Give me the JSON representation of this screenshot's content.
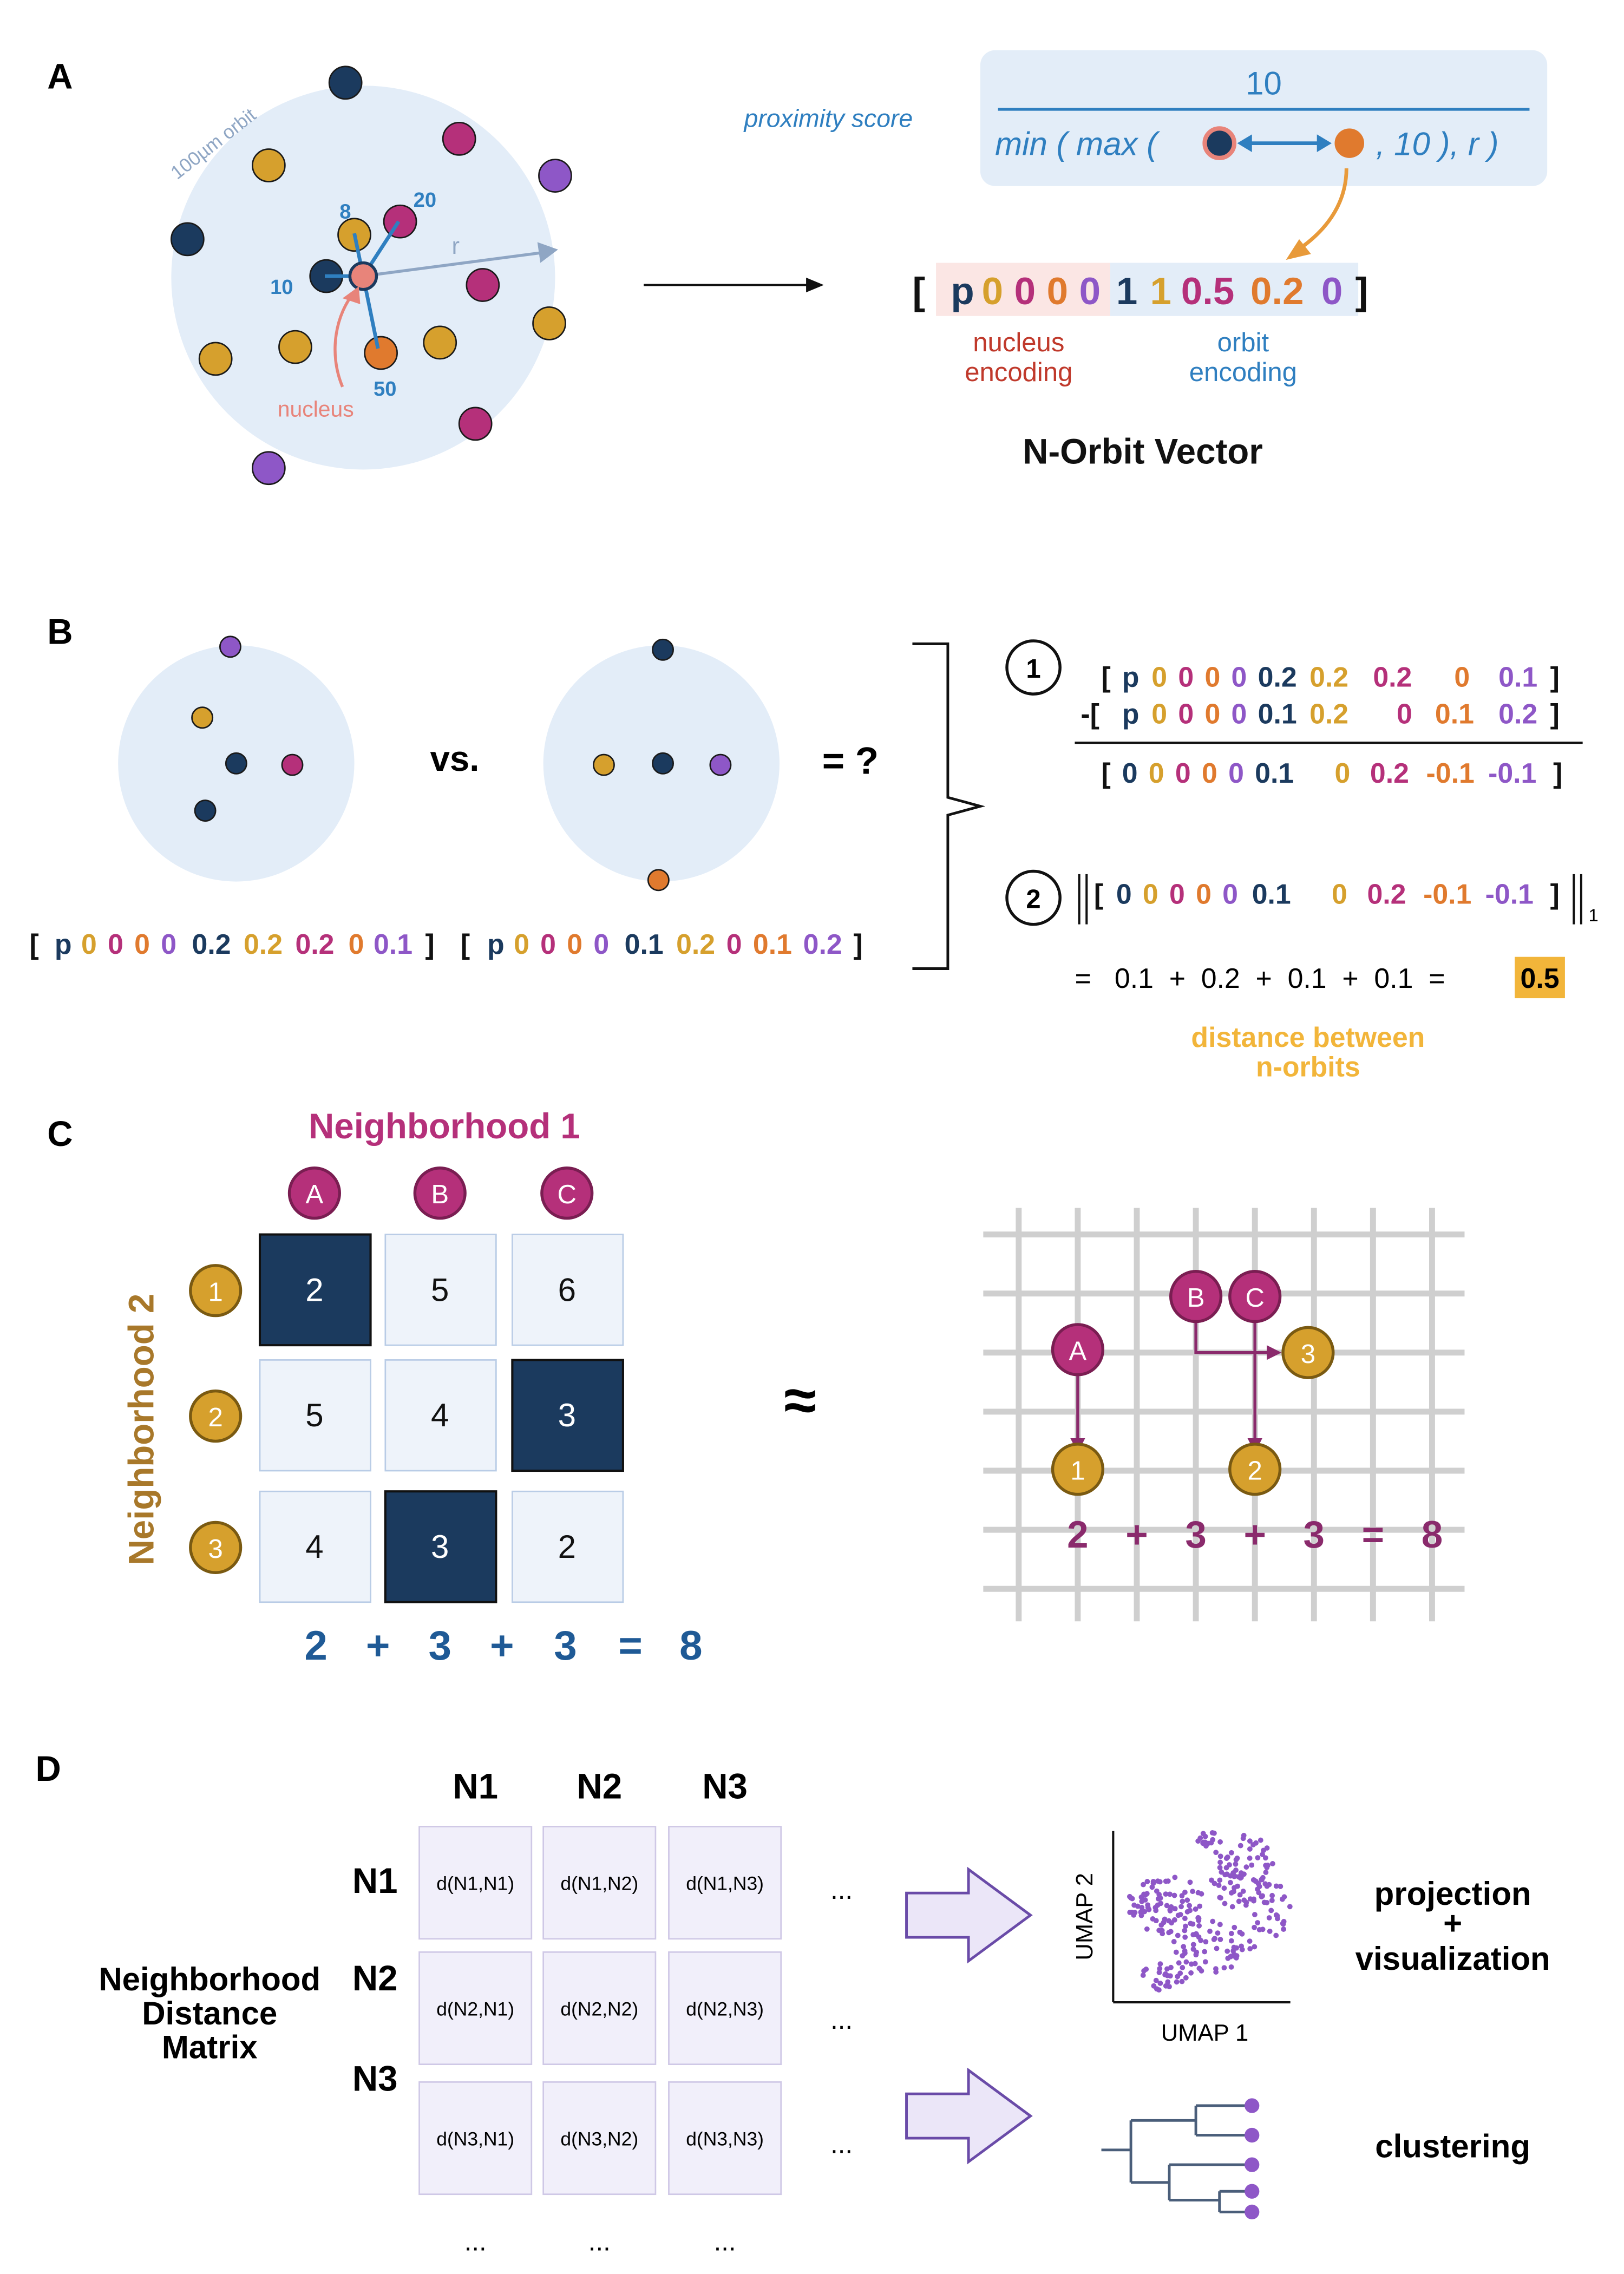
{
  "colors": {
    "navy": "#1B3A5E",
    "gold": "#D6A02D",
    "magenta": "#B5307A",
    "purple": "#8E57C7",
    "orange": "#E07A2E",
    "blue": "#2F7FC0",
    "lightblue": "#E3EDF8",
    "salmon": "#E8847A",
    "steel": "#8FA6C4",
    "red": "#C0392B",
    "cellbg": "#EEF3FA",
    "cellborder": "#B9CCE6",
    "dcell": "#F1EFFA",
    "dborder": "#CFC8E6",
    "plum": "#8A2A6C",
    "darkblue": "#1F5A96",
    "yellow": "#F2B53A",
    "grid": "#CFCFCF"
  },
  "panel_a": {
    "label": "A",
    "orbit_label": "100µm orbit",
    "radius_label": "r",
    "nucleus_label": "nucleus",
    "distance_labels": [
      "8",
      "20",
      "10",
      "50"
    ],
    "proximity_label": "proximity score",
    "formula_numerator": "10",
    "formula_min": "min ( max (",
    "formula_tail": ", 10 ), r )",
    "vector_open": "[",
    "vector_close": "]",
    "vector_items": [
      {
        "t": "p",
        "c": "navy"
      },
      {
        "t": "0",
        "c": "gold"
      },
      {
        "t": "0",
        "c": "magenta"
      },
      {
        "t": "0",
        "c": "orange"
      },
      {
        "t": "0",
        "c": "purple"
      },
      {
        "t": "1",
        "c": "navy"
      },
      {
        "t": "1",
        "c": "gold"
      },
      {
        "t": "0.5",
        "c": "magenta"
      },
      {
        "t": "0.2",
        "c": "orange"
      },
      {
        "t": "0",
        "c": "purple"
      }
    ],
    "nucleus_encoding": [
      "nucleus",
      "encoding"
    ],
    "orbit_encoding": [
      "orbit",
      "encoding"
    ],
    "title": "N-Orbit Vector"
  },
  "panel_b": {
    "label": "B",
    "vs": "vs.",
    "equals": "= ?",
    "vec1": [
      {
        "t": "[",
        "c": "black"
      },
      {
        "t": "p",
        "c": "navy"
      },
      {
        "t": "0",
        "c": "gold"
      },
      {
        "t": "0",
        "c": "magenta"
      },
      {
        "t": "0",
        "c": "orange"
      },
      {
        "t": "0",
        "c": "purple"
      },
      {
        "t": "0.2",
        "c": "navy"
      },
      {
        "t": "0.2",
        "c": "gold"
      },
      {
        "t": "0.2",
        "c": "magenta"
      },
      {
        "t": "0",
        "c": "orange"
      },
      {
        "t": "0.1",
        "c": "purple"
      },
      {
        "t": "]",
        "c": "black"
      }
    ],
    "vec2": [
      {
        "t": "[",
        "c": "black"
      },
      {
        "t": "p",
        "c": "navy"
      },
      {
        "t": "0",
        "c": "gold"
      },
      {
        "t": "0",
        "c": "magenta"
      },
      {
        "t": "0",
        "c": "orange"
      },
      {
        "t": "0",
        "c": "purple"
      },
      {
        "t": "0.1",
        "c": "navy"
      },
      {
        "t": "0.2",
        "c": "gold"
      },
      {
        "t": "0",
        "c": "magenta"
      },
      {
        "t": "0.1",
        "c": "orange"
      },
      {
        "t": "0.2",
        "c": "purple"
      },
      {
        "t": "]",
        "c": "black"
      }
    ],
    "step1": "1",
    "step2": "2",
    "sub_row1": [
      {
        "t": "[",
        "c": "black"
      },
      {
        "t": "p",
        "c": "navy"
      },
      {
        "t": "0",
        "c": "gold"
      },
      {
        "t": "0",
        "c": "magenta"
      },
      {
        "t": "0",
        "c": "orange"
      },
      {
        "t": "0",
        "c": "purple"
      },
      {
        "t": "0.2",
        "c": "navy"
      },
      {
        "t": "0.2",
        "c": "gold"
      },
      {
        "t": "0.2",
        "c": "magenta"
      },
      {
        "t": "0",
        "c": "orange"
      },
      {
        "t": "0.1",
        "c": "purple"
      },
      {
        "t": "]",
        "c": "black"
      }
    ],
    "sub_row2": [
      {
        "t": "-[",
        "c": "black"
      },
      {
        "t": "p",
        "c": "navy"
      },
      {
        "t": "0",
        "c": "gold"
      },
      {
        "t": "0",
        "c": "magenta"
      },
      {
        "t": "0",
        "c": "orange"
      },
      {
        "t": "0",
        "c": "purple"
      },
      {
        "t": "0.1",
        "c": "navy"
      },
      {
        "t": "0.2",
        "c": "gold"
      },
      {
        "t": "0",
        "c": "magenta"
      },
      {
        "t": "0.1",
        "c": "orange"
      },
      {
        "t": "0.2",
        "c": "purple"
      },
      {
        "t": "]",
        "c": "black"
      }
    ],
    "sub_result": [
      {
        "t": "[",
        "c": "black"
      },
      {
        "t": "0",
        "c": "navy"
      },
      {
        "t": "0",
        "c": "gold"
      },
      {
        "t": "0",
        "c": "magenta"
      },
      {
        "t": "0",
        "c": "orange"
      },
      {
        "t": "0",
        "c": "purple"
      },
      {
        "t": "0.1",
        "c": "navy"
      },
      {
        "t": "0",
        "c": "gold"
      },
      {
        "t": "0.2",
        "c": "magenta"
      },
      {
        "t": "-0.1",
        "c": "orange"
      },
      {
        "t": "-0.1",
        "c": "purple"
      },
      {
        "t": "]",
        "c": "black"
      }
    ],
    "norm_row": [
      {
        "t": "[",
        "c": "black"
      },
      {
        "t": "0",
        "c": "navy"
      },
      {
        "t": "0",
        "c": "gold"
      },
      {
        "t": "0",
        "c": "magenta"
      },
      {
        "t": "0",
        "c": "orange"
      },
      {
        "t": "0",
        "c": "purple"
      },
      {
        "t": "0.1",
        "c": "navy"
      },
      {
        "t": "0",
        "c": "gold"
      },
      {
        "t": "0.2",
        "c": "magenta"
      },
      {
        "t": "-0.1",
        "c": "orange"
      },
      {
        "t": "-0.1",
        "c": "purple"
      },
      {
        "t": "]",
        "c": "black"
      }
    ],
    "norm_sub": "1",
    "sum_text": "=   0.1  +  0.2  +  0.1  +  0.1  =",
    "sum_result": "0.5",
    "distance_caption": [
      "distance between",
      "n-orbits"
    ]
  },
  "panel_c": {
    "label": "C",
    "n1_title": "Neighborhood 1",
    "n2_title": "Neighborhood 2",
    "cols": [
      "A",
      "B",
      "C"
    ],
    "rows": [
      "1",
      "2",
      "3"
    ],
    "matrix": [
      [
        "2",
        "5",
        "6"
      ],
      [
        "5",
        "4",
        "3"
      ],
      [
        "4",
        "3",
        "2"
      ]
    ],
    "highlight": [
      [
        true,
        false,
        false
      ],
      [
        false,
        false,
        true
      ],
      [
        false,
        true,
        false
      ]
    ],
    "sum": [
      "2",
      "+",
      "3",
      "+",
      "3",
      "=",
      "8"
    ],
    "approx": "≈",
    "grid_nodes": {
      "A": "A",
      "B": "B",
      "C": "C",
      "n1": "1",
      "n2": "2",
      "n3": "3"
    },
    "grid_sum": [
      "2",
      "+",
      "3",
      "+",
      "3",
      "=",
      "8"
    ]
  },
  "panel_d": {
    "label": "D",
    "col_headers": [
      "N1",
      "N2",
      "N3"
    ],
    "row_headers": [
      "N1",
      "N2",
      "N3"
    ],
    "cells": [
      [
        "d(N1,N1)",
        "d(N1,N2)",
        "d(N1,N3)"
      ],
      [
        "d(N2,N1)",
        "d(N2,N2)",
        "d(N2,N3)"
      ],
      [
        "d(N3,N1)",
        "d(N3,N2)",
        "d(N3,N3)"
      ]
    ],
    "ellipsis": "...",
    "matrix_title": [
      "Neighborhood",
      "Distance",
      "Matrix"
    ],
    "umap_y": "UMAP 2",
    "umap_x": "UMAP 1",
    "projection": [
      "projection",
      "+",
      "visualization"
    ],
    "clustering": "clustering"
  }
}
